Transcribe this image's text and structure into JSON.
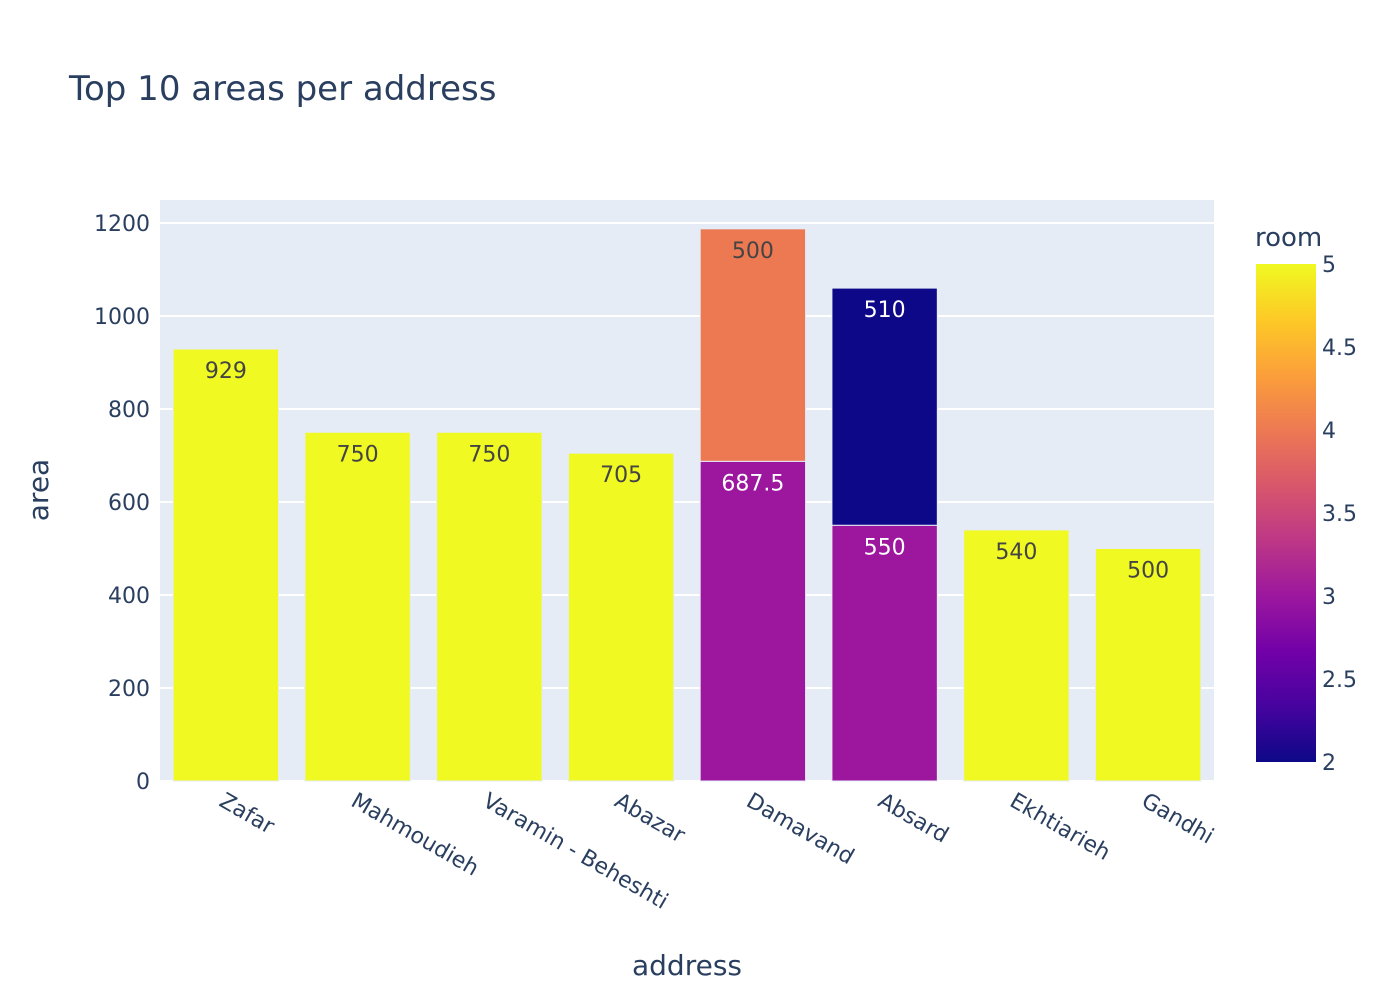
{
  "chart_data": {
    "type": "bar",
    "barmode": "stack",
    "title": "Top 10 areas per address",
    "xlabel": "address",
    "ylabel": "area",
    "ylim": [
      0,
      1250
    ],
    "yticks": [
      0,
      200,
      400,
      600,
      800,
      1000,
      1200
    ],
    "grid": true,
    "categories": [
      "Zafar",
      "Mahmoudieh",
      "Varamin - Beheshti",
      "Abazar",
      "Damavand",
      "Absard",
      "Ekhtiarieh",
      "Gandhi"
    ],
    "bars": [
      {
        "category": "Zafar",
        "segments": [
          {
            "value": 929,
            "room": 5,
            "label": "929"
          }
        ]
      },
      {
        "category": "Mahmoudieh",
        "segments": [
          {
            "value": 750,
            "room": 5,
            "label": "750"
          }
        ]
      },
      {
        "category": "Varamin - Beheshti",
        "segments": [
          {
            "value": 750,
            "room": 5,
            "label": "750"
          }
        ]
      },
      {
        "category": "Abazar",
        "segments": [
          {
            "value": 705,
            "room": 5,
            "label": "705"
          }
        ]
      },
      {
        "category": "Damavand",
        "segments": [
          {
            "value": 687.5,
            "room": 3,
            "label": "687.5"
          },
          {
            "value": 500,
            "room": 4,
            "label": "500"
          }
        ]
      },
      {
        "category": "Absard",
        "segments": [
          {
            "value": 550,
            "room": 3,
            "label": "550"
          },
          {
            "value": 510,
            "room": 2,
            "label": "510"
          }
        ]
      },
      {
        "category": "Ekhtiarieh",
        "segments": [
          {
            "value": 540,
            "room": 5,
            "label": "540"
          }
        ]
      },
      {
        "category": "Gandhi",
        "segments": [
          {
            "value": 500,
            "room": 5,
            "label": "500"
          }
        ]
      }
    ],
    "colorbar": {
      "title": "room",
      "range": [
        2,
        5
      ],
      "ticks": [
        "2",
        "2.5",
        "3",
        "3.5",
        "4",
        "4.5",
        "5"
      ],
      "colors": {
        "2": "#0d0887",
        "3": "#9c179e",
        "4": "#ed7953",
        "5": "#f0f921"
      },
      "scale": [
        "#0d0887",
        "#46039f",
        "#7201a8",
        "#9c179e",
        "#bd3786",
        "#d8576b",
        "#ed7953",
        "#fb9f3a",
        "#fdca26",
        "#f0f921"
      ]
    }
  },
  "theme": {
    "plot_bg": "#e5ecf6",
    "grid_color": "#ffffff",
    "text_color": "#2a3f5f"
  }
}
